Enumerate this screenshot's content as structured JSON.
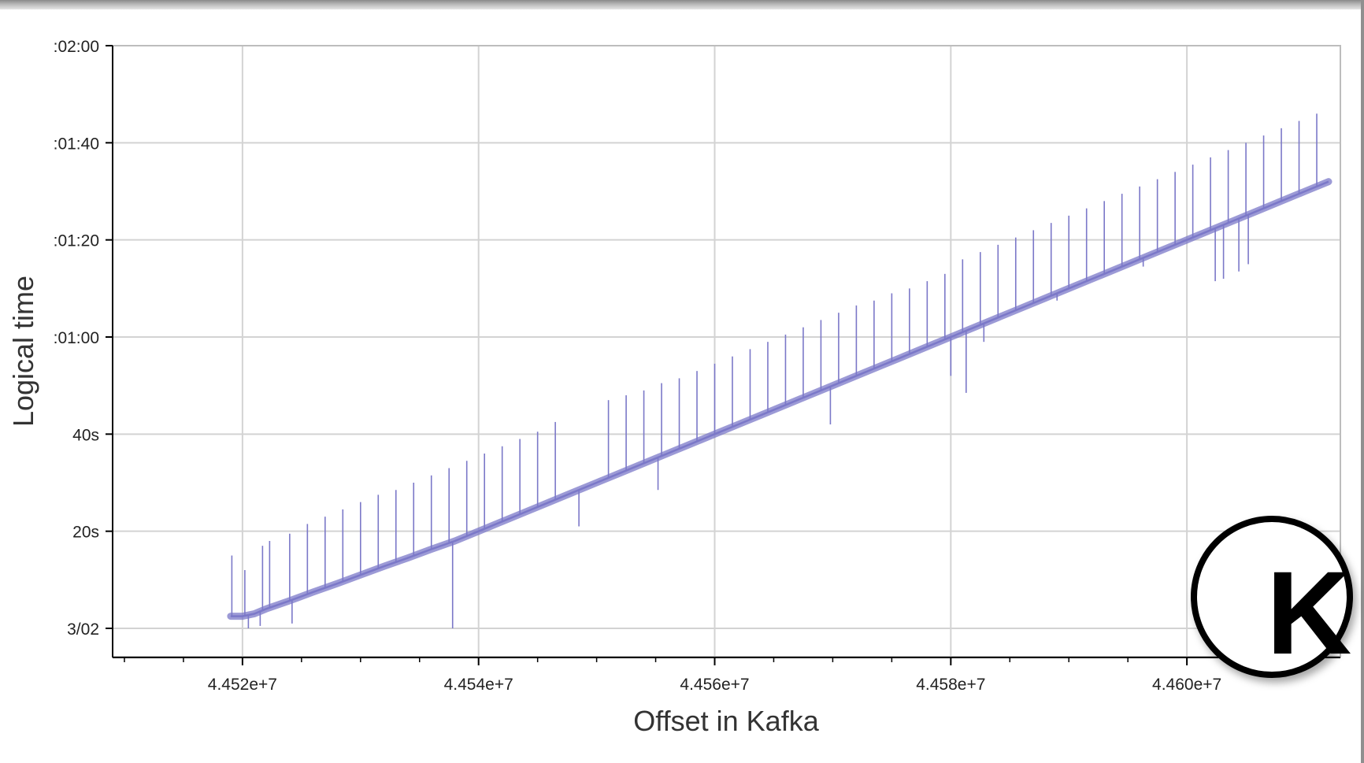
{
  "chart_data": {
    "type": "line",
    "title": "",
    "xlabel": "Offset in Kafka",
    "ylabel": "Logical time",
    "x_unit": "Kafka offset",
    "y_unit": "seconds",
    "xlim": [
      44509000,
      44613000
    ],
    "ylim": [
      -6,
      120
    ],
    "x_ticks": [
      {
        "value": 44520000,
        "label": "4.452e+7"
      },
      {
        "value": 44540000,
        "label": "4.454e+7"
      },
      {
        "value": 44560000,
        "label": "4.456e+7"
      },
      {
        "value": 44580000,
        "label": "4.458e+7"
      },
      {
        "value": 44600000,
        "label": "4.460e+7"
      }
    ],
    "y_ticks": [
      {
        "value": 0,
        "label": "3/02"
      },
      {
        "value": 20,
        "label": "20s"
      },
      {
        "value": 40,
        "label": "40s"
      },
      {
        "value": 60,
        "label": ":01:00"
      },
      {
        "value": 80,
        "label": ":01:20"
      },
      {
        "value": 100,
        "label": ":01:40"
      },
      {
        "value": 120,
        "label": ":02:00"
      }
    ],
    "grid": true,
    "color": "#7b78c8",
    "series": [
      {
        "x": [
          44519000,
          44520000,
          44521000,
          44522000,
          44524000,
          44526000,
          44528000,
          44530000,
          44532000,
          44534000,
          44536000,
          44538000,
          44540000,
          44542000,
          44544000,
          44546000,
          44548000,
          44550000,
          44552000,
          44554000,
          44556000,
          44558000,
          44560000,
          44562000,
          44564000,
          44566000,
          44568000,
          44570000,
          44572000,
          44574000,
          44576000,
          44578000,
          44580000,
          44582000,
          44584000,
          44586000,
          44588000,
          44590000,
          44592000,
          44594000,
          44596000,
          44598000,
          44600000,
          44602000,
          44604000,
          44606000,
          44608000,
          44610000,
          44612000
        ],
        "y": [
          2.5,
          2.5,
          3.0,
          4.0,
          5.7,
          7.5,
          9.2,
          11.0,
          12.8,
          14.5,
          16.3,
          18.0,
          20.0,
          22.0,
          24.0,
          26.0,
          28.0,
          30.0,
          32.0,
          34.0,
          36.0,
          38.0,
          40.0,
          42.0,
          44.0,
          46.0,
          48.0,
          50.0,
          52.0,
          54.0,
          56.0,
          58.0,
          60.0,
          62.0,
          64.0,
          66.0,
          68.0,
          70.0,
          72.0,
          74.0,
          76.0,
          78.0,
          80.0,
          82.0,
          84.0,
          86.0,
          88.0,
          90.0,
          92.0
        ]
      }
    ],
    "spikes_up": [
      {
        "x": 44519100,
        "y": 15.0
      },
      {
        "x": 44520200,
        "y": 12.0
      },
      {
        "x": 44521700,
        "y": 17.0
      },
      {
        "x": 44522300,
        "y": 18.0
      },
      {
        "x": 44524000,
        "y": 19.5
      },
      {
        "x": 44525500,
        "y": 21.5
      },
      {
        "x": 44527000,
        "y": 23.0
      },
      {
        "x": 44528500,
        "y": 24.5
      },
      {
        "x": 44530000,
        "y": 26.0
      },
      {
        "x": 44531500,
        "y": 27.5
      },
      {
        "x": 44533000,
        "y": 28.5
      },
      {
        "x": 44534500,
        "y": 30.0
      },
      {
        "x": 44536000,
        "y": 31.5
      },
      {
        "x": 44537500,
        "y": 33.0
      },
      {
        "x": 44539000,
        "y": 34.5
      },
      {
        "x": 44540500,
        "y": 36.0
      },
      {
        "x": 44542000,
        "y": 37.5
      },
      {
        "x": 44543500,
        "y": 39.0
      },
      {
        "x": 44545000,
        "y": 40.5
      },
      {
        "x": 44546500,
        "y": 42.5
      },
      {
        "x": 44551000,
        "y": 47.0
      },
      {
        "x": 44552500,
        "y": 48.0
      },
      {
        "x": 44554000,
        "y": 49.0
      },
      {
        "x": 44555500,
        "y": 50.5
      },
      {
        "x": 44557000,
        "y": 51.5
      },
      {
        "x": 44558500,
        "y": 53.0
      },
      {
        "x": 44560000,
        "y": 54.5
      },
      {
        "x": 44561500,
        "y": 56.0
      },
      {
        "x": 44563000,
        "y": 57.5
      },
      {
        "x": 44564500,
        "y": 59.0
      },
      {
        "x": 44566000,
        "y": 60.5
      },
      {
        "x": 44567500,
        "y": 62.0
      },
      {
        "x": 44569000,
        "y": 63.5
      },
      {
        "x": 44570500,
        "y": 65.0
      },
      {
        "x": 44572000,
        "y": 66.5
      },
      {
        "x": 44573500,
        "y": 67.5
      },
      {
        "x": 44575000,
        "y": 69.0
      },
      {
        "x": 44576500,
        "y": 70.0
      },
      {
        "x": 44578000,
        "y": 71.5
      },
      {
        "x": 44579500,
        "y": 73.0
      },
      {
        "x": 44581000,
        "y": 76.0
      },
      {
        "x": 44582500,
        "y": 77.5
      },
      {
        "x": 44584000,
        "y": 79.0
      },
      {
        "x": 44585500,
        "y": 80.5
      },
      {
        "x": 44587000,
        "y": 82.0
      },
      {
        "x": 44588500,
        "y": 83.5
      },
      {
        "x": 44590000,
        "y": 85.0
      },
      {
        "x": 44591500,
        "y": 86.5
      },
      {
        "x": 44593000,
        "y": 88.0
      },
      {
        "x": 44594500,
        "y": 89.5
      },
      {
        "x": 44596000,
        "y": 91.0
      },
      {
        "x": 44597500,
        "y": 92.5
      },
      {
        "x": 44599000,
        "y": 94.0
      },
      {
        "x": 44600500,
        "y": 95.5
      },
      {
        "x": 44602000,
        "y": 97.0
      },
      {
        "x": 44603500,
        "y": 98.5
      },
      {
        "x": 44605000,
        "y": 100.0
      },
      {
        "x": 44606500,
        "y": 101.5
      },
      {
        "x": 44608000,
        "y": 103.0
      },
      {
        "x": 44609500,
        "y": 104.5
      },
      {
        "x": 44611000,
        "y": 106.0
      }
    ],
    "spikes_down": [
      {
        "x": 44520500,
        "y": 0.0
      },
      {
        "x": 44521500,
        "y": 0.5
      },
      {
        "x": 44524200,
        "y": 1.0
      },
      {
        "x": 44537800,
        "y": 0.0
      },
      {
        "x": 44548500,
        "y": 21.0
      },
      {
        "x": 44555200,
        "y": 28.5
      },
      {
        "x": 44569800,
        "y": 42.0
      },
      {
        "x": 44580000,
        "y": 52.0
      },
      {
        "x": 44581300,
        "y": 48.5
      },
      {
        "x": 44582800,
        "y": 59.0
      },
      {
        "x": 44589000,
        "y": 67.5
      },
      {
        "x": 44596300,
        "y": 74.5
      },
      {
        "x": 44602400,
        "y": 71.5
      },
      {
        "x": 44603100,
        "y": 72.0
      },
      {
        "x": 44604400,
        "y": 73.5
      },
      {
        "x": 44605200,
        "y": 75.0
      }
    ]
  },
  "logo": {
    "letter": "K"
  }
}
